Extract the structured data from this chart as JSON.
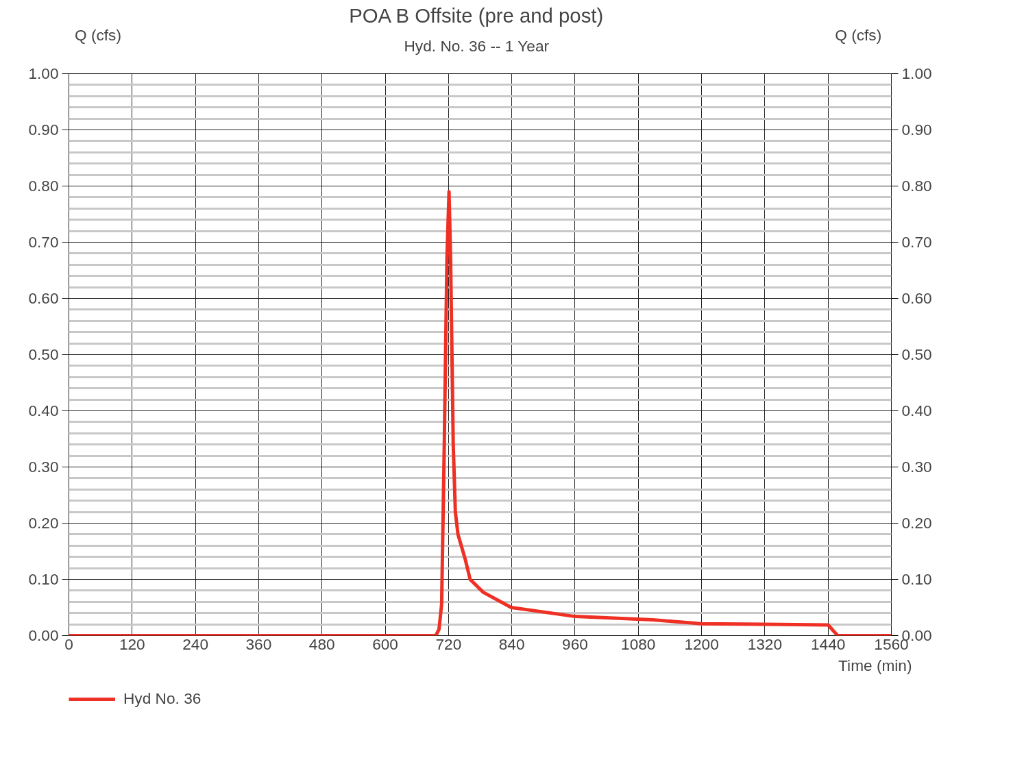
{
  "chart_data": {
    "type": "line",
    "title": "POA B Offsite (pre and post)",
    "subtitle": "Hyd. No. 36 -- 1 Year",
    "xlabel": "Time (min)",
    "ylabel": "Q (cfs)",
    "y2label": "Q (cfs)",
    "x": [
      0,
      696,
      702,
      707,
      712,
      717,
      721,
      724,
      729,
      733,
      738,
      752,
      761,
      786,
      839,
      960,
      1107,
      1200,
      1317,
      1440,
      1458,
      1560
    ],
    "series": [
      {
        "name": "Hyd No. 36",
        "color": "#ee3124",
        "values": [
          0,
          0,
          0.011,
          0.056,
          0.34,
          0.67,
          0.79,
          0.67,
          0.34,
          0.22,
          0.18,
          0.135,
          0.1,
          0.077,
          0.05,
          0.034,
          0.028,
          0.021,
          0.02,
          0.019,
          0,
          0
        ]
      }
    ],
    "xlim": [
      0,
      1560
    ],
    "xticks": [
      0,
      120,
      240,
      360,
      480,
      600,
      720,
      840,
      960,
      1080,
      1200,
      1320,
      1440,
      1560
    ],
    "ylim": [
      0,
      1
    ],
    "yticks": [
      {
        "value": 0,
        "label": "0.00"
      },
      {
        "value": 0.1,
        "label": "0.10"
      },
      {
        "value": 0.2,
        "label": "0.20"
      },
      {
        "value": 0.3,
        "label": "0.30"
      },
      {
        "value": 0.4,
        "label": "0.40"
      },
      {
        "value": 0.5,
        "label": "0.50"
      },
      {
        "value": 0.6,
        "label": "0.60"
      },
      {
        "value": 0.7,
        "label": "0.70"
      },
      {
        "value": 0.8,
        "label": "0.80"
      },
      {
        "value": 0.9,
        "label": "0.90"
      },
      {
        "value": 1,
        "label": "1.00"
      }
    ],
    "y2lim": [
      0,
      1
    ],
    "y2ticks": [
      {
        "value": 0,
        "label": "0.00"
      },
      {
        "value": 0.1,
        "label": "0.10"
      },
      {
        "value": 0.2,
        "label": "0.20"
      },
      {
        "value": 0.3,
        "label": "0.30"
      },
      {
        "value": 0.4,
        "label": "0.40"
      },
      {
        "value": 0.5,
        "label": "0.50"
      },
      {
        "value": 0.6,
        "label": "0.60"
      },
      {
        "value": 0.7,
        "label": "0.70"
      },
      {
        "value": 0.8,
        "label": "0.80"
      },
      {
        "value": 0.9,
        "label": "0.90"
      },
      {
        "value": 1,
        "label": "1.00"
      }
    ],
    "grid": true,
    "legend": "bottom left",
    "line_style": "solid"
  }
}
